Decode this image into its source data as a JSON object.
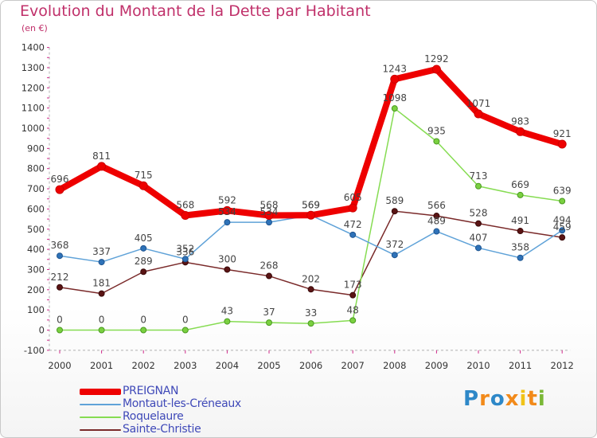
{
  "header": {
    "title": "Evolution du Montant de la Dette par Habitant",
    "subtitle": "(en €)"
  },
  "brand": {
    "logo_text": "Proxiti"
  },
  "chart_data": {
    "type": "line",
    "title": "Evolution du Montant de la Dette par Habitant",
    "subtitle": "(en €)",
    "xlabel": "",
    "ylabel": "",
    "ylim": [
      -100,
      1400
    ],
    "yticks": [
      -100,
      0,
      100,
      200,
      300,
      400,
      500,
      600,
      700,
      800,
      900,
      1000,
      1100,
      1200,
      1300,
      1400
    ],
    "categories": [
      "2000",
      "2001",
      "2002",
      "2003",
      "2004",
      "2005",
      "2006",
      "2007",
      "2008",
      "2009",
      "2010",
      "2011",
      "2012"
    ],
    "legend_position": "bottom-left",
    "grid": false,
    "series": [
      {
        "name": "PREIGNAN",
        "color": "#ee0000",
        "values": [
          696,
          811,
          715,
          568,
          592,
          568,
          569,
          605,
          1243,
          1292,
          1071,
          983,
          921
        ]
      },
      {
        "name": "Montaut-les-Créneaux",
        "color": "#5fa2d8",
        "values": [
          368,
          337,
          405,
          352,
          534,
          534,
          569,
          472,
          372,
          489,
          407,
          358,
          494
        ]
      },
      {
        "name": "Roquelaure",
        "color": "#86dc52",
        "values": [
          0,
          0,
          0,
          0,
          43,
          37,
          33,
          48,
          1098,
          935,
          713,
          669,
          639
        ]
      },
      {
        "name": "Sainte-Christie",
        "color": "#7a2a2a",
        "values": [
          212,
          181,
          289,
          336,
          300,
          268,
          202,
          173,
          589,
          566,
          528,
          491,
          459
        ]
      }
    ]
  }
}
